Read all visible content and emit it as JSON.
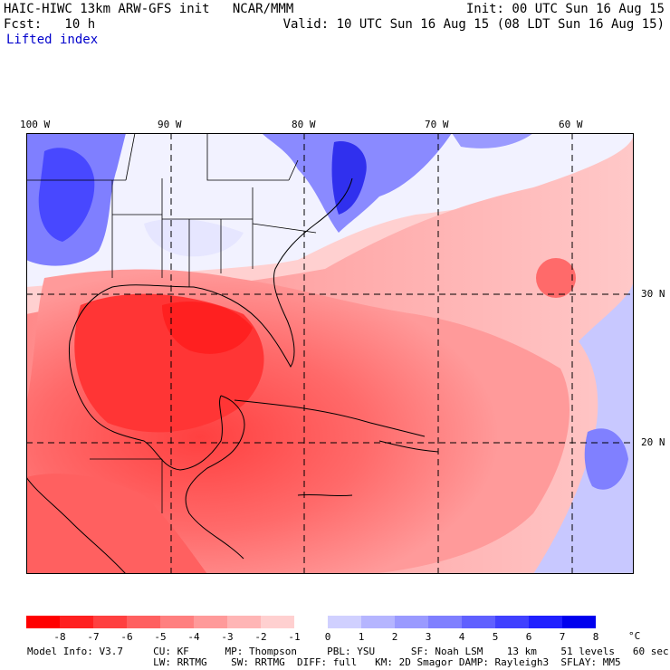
{
  "header": {
    "line1_left": "HAIC-HIWC 13km ARW-GFS init   NCAR/MMM",
    "line1_right": "Init: 00 UTC Sun 16 Aug 15",
    "line2_left": "Fcst:   10 h",
    "line2_right": "Valid: 10 UTC Sun 16 Aug 15 (08 LDT Sun 16 Aug 15)",
    "field": "Lifted index"
  },
  "axes": {
    "lon_labels": [
      "100 W",
      "90 W",
      "80 W",
      "70 W",
      "60 W"
    ],
    "lat_labels": [
      "30 N",
      "20 N"
    ]
  },
  "colorbar": {
    "colors": [
      "#ff0000",
      "#ff2020",
      "#ff4040",
      "#ff6060",
      "#ff7f7f",
      "#ff9a9a",
      "#ffb5b5",
      "#ffd0d0",
      "#ffffff",
      "#d0d0ff",
      "#b5b5ff",
      "#9a9aff",
      "#7f7fff",
      "#6060ff",
      "#4040ff",
      "#2020ff",
      "#0000ee"
    ],
    "ticks": [
      "-8",
      "-7",
      "-6",
      "-5",
      "-4",
      "-3",
      "-2",
      "-1",
      "0",
      "1",
      "2",
      "3",
      "4",
      "5",
      "6",
      "7",
      "8"
    ],
    "unit": "°C"
  },
  "footer": {
    "line1": "Model Info: V3.7     CU: KF      MP: Thompson     PBL: YSU      SF: Noah LSM    13 km    51 levels   60 sec",
    "line2": "                     LW: RRTMG    SW: RRTMG  DIFF: full   KM: 2D Smagor DAMP: Rayleigh3  SFLAY: MM5"
  }
}
